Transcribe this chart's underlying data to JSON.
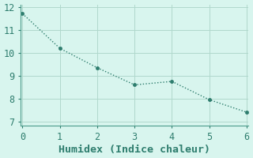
{
  "x": [
    0,
    1,
    2,
    3,
    4,
    5,
    6
  ],
  "y": [
    11.72,
    10.2,
    9.35,
    8.6,
    8.75,
    7.95,
    7.4
  ],
  "xlabel": "Humidex (Indice chaleur)",
  "xlim": [
    -0.05,
    6.05
  ],
  "ylim": [
    6.8,
    12.1
  ],
  "xticks": [
    0,
    1,
    2,
    3,
    4,
    5,
    6
  ],
  "yticks": [
    7,
    8,
    9,
    10,
    11,
    12
  ],
  "line_color": "#2e7d6e",
  "bg_color": "#d8f5ee",
  "grid_color": "#b0d8cc",
  "spine_color": "#4a9a8a",
  "tick_label_fontsize": 8.5,
  "xlabel_fontsize": 9.5,
  "marker_size": 3,
  "line_width": 1.0
}
